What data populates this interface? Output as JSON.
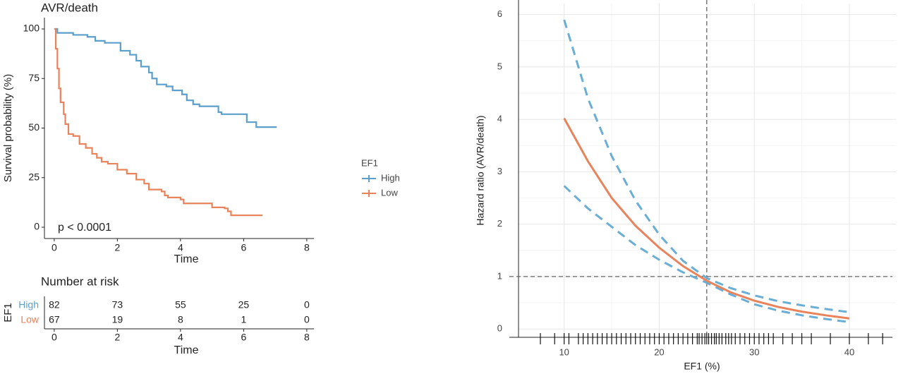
{
  "chart_data": [
    {
      "type": "step",
      "title": "AVR/death",
      "ylabel": "Survival probability (%)",
      "xlabel": "Time",
      "annotation": "p < 0.0001",
      "legend_title": "EF1",
      "xlim": [
        -0.31,
        8.45
      ],
      "xticks": [
        0,
        2,
        4,
        6,
        8
      ],
      "ylim": [
        -5.7,
        105.7
      ],
      "yticks": [
        0,
        25,
        50,
        75,
        100
      ],
      "series": [
        {
          "name": "High",
          "color": "#5b9fca",
          "x": [
            0,
            0.1,
            0.6,
            1.05,
            1.3,
            1.6,
            2.1,
            2.4,
            2.6,
            2.75,
            3.0,
            3.1,
            3.25,
            3.55,
            3.75,
            4.05,
            4.2,
            4.4,
            4.6,
            5.2,
            5.3,
            6.1,
            6.4,
            7.05
          ],
          "values": [
            100,
            98,
            97,
            96,
            94,
            93,
            89,
            87,
            84,
            81,
            78,
            75,
            72,
            71,
            69,
            67,
            64,
            62,
            61,
            58,
            57,
            53,
            50.5,
            50.5
          ]
        },
        {
          "name": "Low",
          "color": "#e8835b",
          "x": [
            0,
            0.05,
            0.1,
            0.15,
            0.2,
            0.3,
            0.35,
            0.45,
            0.6,
            0.8,
            1.0,
            1.2,
            1.35,
            1.5,
            1.7,
            2.0,
            2.3,
            2.6,
            2.85,
            3.0,
            3.4,
            3.5,
            3.6,
            4.0,
            4.1,
            5.0,
            5.4,
            5.5,
            5.6,
            6.6
          ],
          "values": [
            100,
            90,
            80,
            70,
            63,
            57,
            52,
            47,
            46,
            42,
            40,
            37,
            35,
            33,
            32,
            29,
            27,
            24,
            22,
            19,
            18,
            16,
            15,
            14,
            12,
            10,
            9.5,
            8,
            6,
            6
          ]
        }
      ]
    },
    {
      "type": "table",
      "title": "Number at risk",
      "ylabel": "EF1",
      "xlabel": "Time",
      "xlim": [
        -0.31,
        8.45
      ],
      "xticks": [
        0,
        2,
        4,
        6,
        8
      ],
      "rows": [
        {
          "name": "High",
          "color": "#5b9fca",
          "values": [
            82,
            73,
            55,
            25,
            0
          ]
        },
        {
          "name": "Low",
          "color": "#e8835b",
          "values": [
            67,
            19,
            8,
            1,
            0
          ]
        }
      ]
    },
    {
      "type": "line",
      "ylabel": "Hazard ratio (AVR/death)",
      "xlabel": "EF1 (%)",
      "xlim": [
        5.2,
        44.9
      ],
      "xticks": [
        10,
        20,
        30,
        40
      ],
      "ylim": [
        -0.16,
        6.21
      ],
      "yticks": [
        0,
        1,
        2,
        3,
        4,
        5,
        6
      ],
      "grid": true,
      "ref_x": 25,
      "ref_y": 1,
      "x": [
        10,
        12.5,
        15,
        17.5,
        20,
        22.5,
        25,
        27.5,
        30,
        32.5,
        35,
        37.5,
        40
      ],
      "series": [
        {
          "color": "#6aaed6",
          "dashed": true,
          "values": [
            5.9,
            4.4,
            3.3,
            2.45,
            1.8,
            1.3,
            0.97,
            0.78,
            0.64,
            0.53,
            0.45,
            0.38,
            0.32
          ]
        },
        {
          "color": "#6aaed6",
          "dashed": true,
          "values": [
            2.73,
            2.3,
            1.95,
            1.6,
            1.32,
            1.08,
            0.88,
            0.66,
            0.47,
            0.35,
            0.26,
            0.19,
            0.13
          ]
        },
        {
          "color": "#e8835b",
          "dashed": false,
          "values": [
            4.02,
            3.2,
            2.5,
            1.97,
            1.55,
            1.2,
            0.92,
            0.7,
            0.54,
            0.42,
            0.33,
            0.26,
            0.2
          ]
        }
      ],
      "rug": [
        7.5,
        9,
        10,
        10.5,
        11.5,
        12,
        12.5,
        13,
        13.5,
        14,
        14.5,
        15,
        15.5,
        16,
        16.5,
        17,
        17.5,
        18,
        18.5,
        19,
        19.5,
        20,
        20.5,
        21,
        21.5,
        22,
        22.5,
        23,
        23.5,
        24,
        24.2,
        24.5,
        24.8,
        25,
        25.2,
        25.5,
        25.8,
        26,
        26.3,
        26.6,
        27,
        27.3,
        27.6,
        28,
        28.5,
        29,
        29.5,
        30,
        30.5,
        31,
        31.5,
        32,
        33,
        34,
        35,
        36,
        38,
        40,
        42,
        43.5
      ]
    }
  ]
}
